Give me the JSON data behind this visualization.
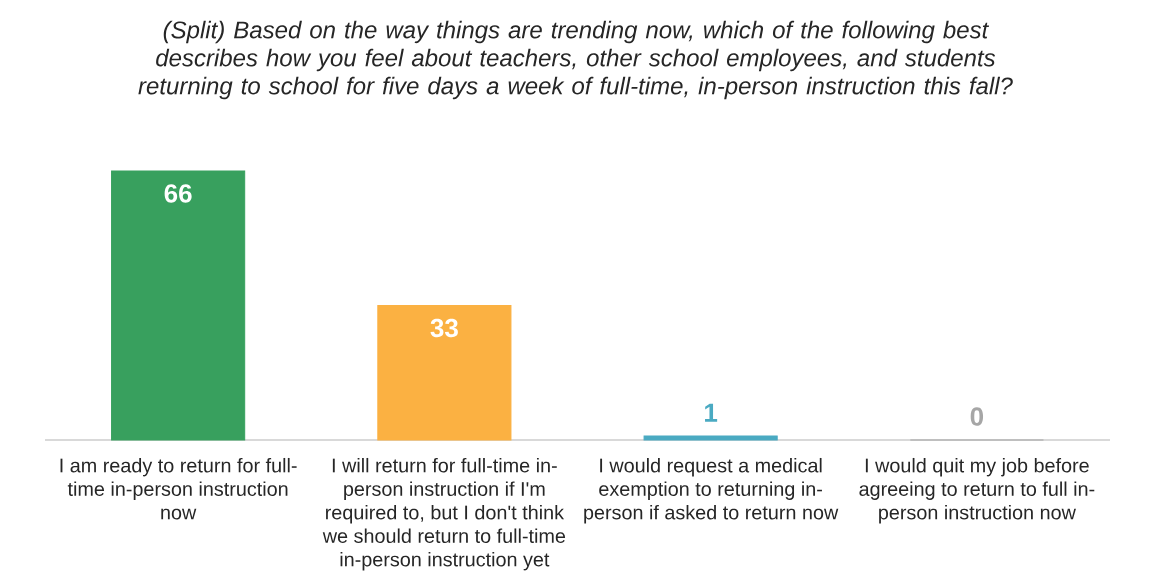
{
  "chart_data": {
    "type": "bar",
    "title": "(Split) Based on the way things are trending now, which of the following best describes how you feel about teachers, other school employees, and students returning to school for five days a week of full-time, in-person instruction this fall?",
    "categories": [
      "I am ready to return for full-time in-person instruction now",
      "I will return for full-time in-person instruction if I'm required to, but I don't think we should return to full-time in-person instruction yet",
      "I would request a medical exemption to returning in-person if asked to return now",
      "I would quit my job before agreeing to return to full in-person instruction now"
    ],
    "values": [
      66,
      33,
      1,
      0
    ],
    "colors": [
      "#38a05e",
      "#fbb142",
      "#4aaac2",
      "#a6a6a6"
    ],
    "data_labels": true,
    "tick_labels": "x"
  }
}
